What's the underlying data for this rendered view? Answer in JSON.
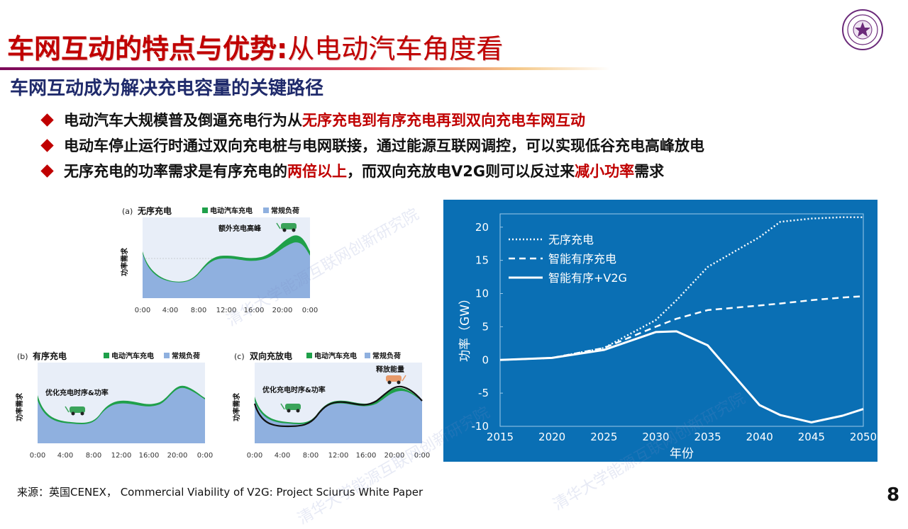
{
  "header": {
    "title_main": "车网互动的特点与优势:",
    "title_sub": "从电动汽车角度看"
  },
  "subtitle": "车网互动成为解决充电容量的关键路径",
  "bullets": [
    {
      "parts": [
        {
          "text": "电动汽车大规模普及倒逼充电行为从",
          "red": false
        },
        {
          "text": "无序充电到有序充电再到双向充电车网互动",
          "red": true
        }
      ]
    },
    {
      "parts": [
        {
          "text": "电动车停止运行时通过双向充电桩与电网联接，通过能源互联网调控，可以实现低谷充电高峰放电",
          "red": false
        }
      ]
    },
    {
      "parts": [
        {
          "text": "无序充电的功率需求是有序充电的",
          "red": false
        },
        {
          "text": "两倍以上",
          "red": true
        },
        {
          "text": "，而双向充放电V2G则可以反过来",
          "red": false
        },
        {
          "text": "减小功率",
          "red": true
        },
        {
          "text": "需求",
          "red": false
        }
      ]
    }
  ],
  "small_charts": {
    "ylabel": "功率需求",
    "legend_ev": "电动汽车充电",
    "legend_base": "常规负荷",
    "x_ticks": [
      "0:00",
      "4:00",
      "8:00",
      "12:00",
      "16:00",
      "20:00",
      "0:00"
    ],
    "panels": [
      {
        "tag": "(a)",
        "name": "无序充电",
        "annotation": "额外充电高峰"
      },
      {
        "tag": "(b)",
        "name": "有序充电",
        "annotation": "优化充电时序&功率"
      },
      {
        "tag": "(c)",
        "name": "双向充放电",
        "annotation": "优化充电时序&功率",
        "annotation2": "释放能量"
      }
    ]
  },
  "chart_data": {
    "type": "line",
    "x": [
      2015,
      2020,
      2025,
      2030,
      2032,
      2035,
      2040,
      2042,
      2045,
      2048,
      2050
    ],
    "series": [
      {
        "name": "无序充电",
        "style": "dotted",
        "values": [
          0,
          0.3,
          1.8,
          6,
          9,
          14,
          18.5,
          20.8,
          21.3,
          21.5,
          21.5
        ]
      },
      {
        "name": "智能有序充电",
        "style": "dashed",
        "values": [
          0,
          0.3,
          1.8,
          5,
          6.2,
          7.5,
          8.2,
          8.5,
          9,
          9.4,
          9.6
        ]
      },
      {
        "name": "智能有序+V2G",
        "style": "solid",
        "values": [
          0,
          0.3,
          1.5,
          4.2,
          4.3,
          2.2,
          -6.8,
          -8.3,
          -9.4,
          -8.4,
          -7.4
        ]
      }
    ],
    "x_ticks": [
      2015,
      2020,
      2025,
      2030,
      2035,
      2040,
      2045,
      2050
    ],
    "y_ticks": [
      20,
      15,
      10,
      5,
      0,
      -5,
      -10
    ],
    "xlim": [
      2015,
      2050
    ],
    "ylim": [
      -10,
      22
    ],
    "xlabel": "年份",
    "ylabel": "功率（GW）",
    "legend_position": "top-left",
    "background": "#0a6fb4",
    "plot_background": "#ffffff"
  },
  "source_text": "来源：英国CENEX， Commercial Viability of V2G: Project Sciurus White Paper",
  "page_number": "8",
  "watermark_text": "清华大学能源互联网创新研究院"
}
